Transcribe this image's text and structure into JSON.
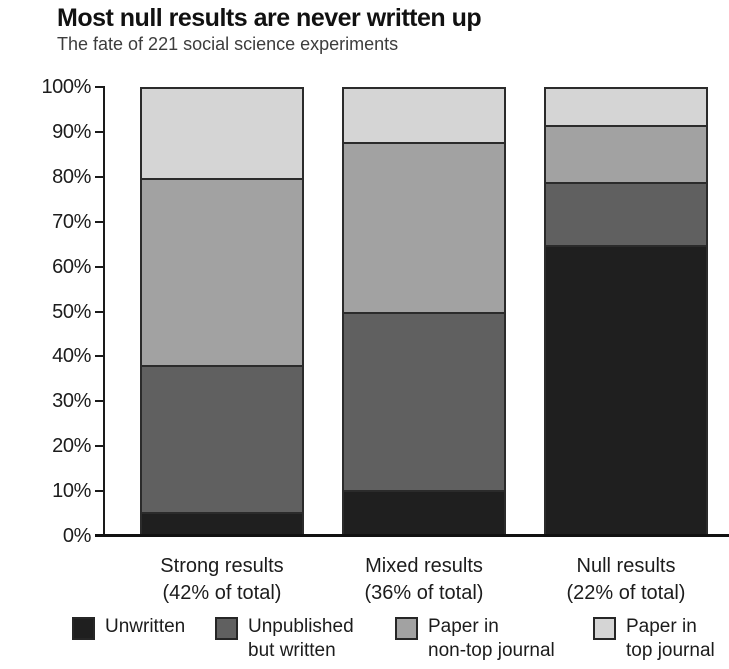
{
  "figure": {
    "title": "Most null results are never written up",
    "subtitle": "The fate of 221 social science experiments"
  },
  "colors": {
    "axis": "#1a1a1a",
    "bar_border": "#2b2b2b",
    "title_text": "#111111",
    "subtitle_text": "#3d3d3d",
    "unwritten": "#1f1f1f",
    "unpublished_but_written": "#606060",
    "paper_in_non_top_journal": "#a2a2a2",
    "paper_in_top_journal": "#d5d5d5"
  },
  "chart_data": {
    "type": "bar",
    "stacked": true,
    "title": "Most null results are never written up",
    "subtitle": "The fate of 221 social science experiments",
    "xlabel": "",
    "ylabel": "",
    "ylim": [
      0,
      100
    ],
    "yticks": [
      0,
      10,
      20,
      30,
      40,
      50,
      60,
      70,
      80,
      90,
      100
    ],
    "ytick_suffix": "%",
    "grid": false,
    "legend_position": "bottom",
    "categories": [
      "Strong results (42% of total)",
      "Mixed results (36% of total)",
      "Null results (22% of total)"
    ],
    "category_label_lines": [
      [
        "Strong results",
        "(42% of total)"
      ],
      [
        "Mixed results",
        "(36% of total)"
      ],
      [
        "Null results",
        "(22% of total)"
      ]
    ],
    "series": [
      {
        "name": "Unwritten",
        "color": "#1f1f1f",
        "values": [
          5,
          10,
          65
        ]
      },
      {
        "name": "Unpublished but written",
        "color": "#606060",
        "values": [
          33,
          40,
          14
        ]
      },
      {
        "name": "Paper in non-top journal",
        "color": "#a2a2a2",
        "values": [
          42,
          38,
          13
        ]
      },
      {
        "name": "Paper in top journal",
        "color": "#d5d5d5",
        "values": [
          20,
          12,
          8
        ]
      }
    ],
    "legend_label_lines": [
      [
        "Unwritten"
      ],
      [
        "Unpublished",
        "but written"
      ],
      [
        "Paper in",
        "non-top journal"
      ],
      [
        "Paper in",
        "top journal"
      ]
    ]
  }
}
